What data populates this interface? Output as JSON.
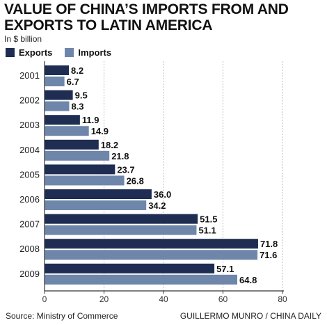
{
  "title": "VALUE OF CHINA’S IMPORTS FROM AND EXPORTS TO LATIN AMERICA",
  "unit_label": "In $ billion",
  "source": "Source: Ministry of Commerce",
  "credit": "GUILLERMO MUNRO / CHINA DAILY",
  "colors": {
    "exports": "#1f2d52",
    "imports": "#6f86ab",
    "grid": "#b9bdc4",
    "axis": "#333333"
  },
  "chart_data": {
    "type": "bar",
    "orientation": "horizontal",
    "title": "VALUE OF CHINA’S IMPORTS FROM AND EXPORTS TO LATIN AMERICA",
    "categories": [
      "2001",
      "2002",
      "2003",
      "2004",
      "2005",
      "2006",
      "2007",
      "2008",
      "2009"
    ],
    "series": [
      {
        "name": "Exports",
        "values": [
          8.2,
          9.5,
          11.9,
          18.2,
          23.7,
          36.0,
          51.5,
          71.8,
          57.1
        ]
      },
      {
        "name": "Imports",
        "values": [
          6.7,
          8.3,
          14.9,
          21.8,
          26.8,
          34.2,
          51.1,
          71.6,
          64.8
        ]
      }
    ],
    "value_labels": {
      "Exports": [
        "8.2",
        "9.5",
        "11.9",
        "18.2",
        "23.7",
        "36.0",
        "51.5",
        "71.8",
        "57.1"
      ],
      "Imports": [
        "6.7",
        "8.3",
        "14.9",
        "21.8",
        "26.8",
        "34.2",
        "51.1",
        "71.6",
        "64.8"
      ]
    },
    "xlim": [
      0,
      80
    ],
    "xticks": [
      0,
      20,
      40,
      60,
      80
    ],
    "xlabel": "",
    "ylabel": "",
    "grid": "vertical dashed",
    "legend": "top-left"
  }
}
